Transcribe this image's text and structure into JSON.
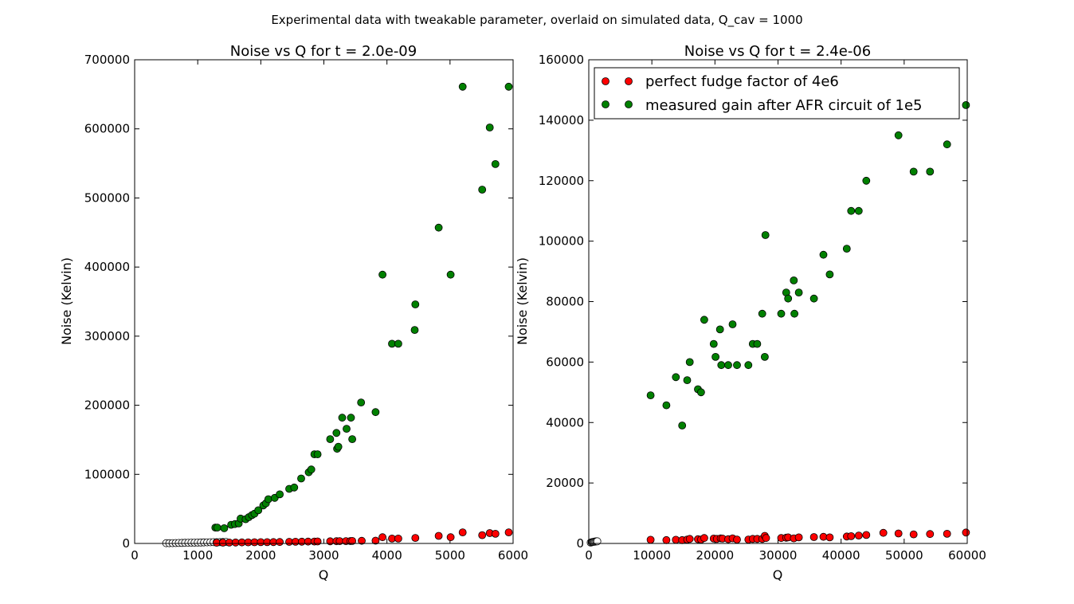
{
  "figure_title": "Experimental data with tweakable parameter, overlaid on simulated data, Q_cav = 1000",
  "colors": {
    "perfect": "#ff0000",
    "measured": "#008000",
    "simulated_edge": "#000000",
    "background": "#ffffff"
  },
  "chart_data": [
    {
      "type": "scatter",
      "title": "Noise vs Q for t = 2.0e-09",
      "xlabel": "Q",
      "ylabel": "Noise (Kelvin)",
      "xlim": [
        0,
        6000
      ],
      "ylim": [
        0,
        700000
      ],
      "xticks": [
        "0",
        "1000",
        "2000",
        "3000",
        "4000",
        "5000",
        "6000"
      ],
      "yticks": [
        "0",
        "100000",
        "200000",
        "300000",
        "400000",
        "500000",
        "600000",
        "700000"
      ],
      "grid": false,
      "legend": null,
      "series": [
        {
          "key": "simulated",
          "marker": "open-circle",
          "points": [
            [
              500,
              300
            ],
            [
              550,
              400
            ],
            [
              600,
              500
            ],
            [
              650,
              600
            ],
            [
              700,
              700
            ],
            [
              750,
              800
            ],
            [
              800,
              900
            ],
            [
              850,
              1000
            ],
            [
              900,
              1100
            ],
            [
              950,
              1200
            ],
            [
              1000,
              1300
            ],
            [
              1050,
              1400
            ],
            [
              1100,
              1500
            ],
            [
              1150,
              1600
            ],
            [
              1200,
              1700
            ],
            [
              1250,
              1800
            ],
            [
              1300,
              1900
            ],
            [
              1350,
              2000
            ],
            [
              1400,
              2100
            ],
            [
              1450,
              2200
            ]
          ]
        },
        {
          "key": "perfect",
          "marker": "filled-circle",
          "points": [
            [
              1300,
              1000
            ],
            [
              1400,
              1200
            ],
            [
              1500,
              1300
            ],
            [
              1600,
              1400
            ],
            [
              1700,
              1500
            ],
            [
              1800,
              1600
            ],
            [
              1900,
              1700
            ],
            [
              2000,
              1800
            ],
            [
              2100,
              1900
            ],
            [
              2200,
              2000
            ],
            [
              2300,
              2100
            ],
            [
              2450,
              2300
            ],
            [
              2550,
              2400
            ],
            [
              2650,
              2500
            ],
            [
              2750,
              2700
            ],
            [
              2850,
              2800
            ],
            [
              2900,
              2900
            ],
            [
              3100,
              3100
            ],
            [
              3200,
              3200
            ],
            [
              3250,
              3300
            ],
            [
              3350,
              3400
            ],
            [
              3420,
              3500
            ],
            [
              3450,
              3600
            ],
            [
              3600,
              3800
            ],
            [
              3820,
              4000
            ],
            [
              3930,
              9000
            ],
            [
              4080,
              7000
            ],
            [
              4180,
              7000
            ],
            [
              4450,
              8000
            ],
            [
              4820,
              11000
            ],
            [
              5010,
              9000
            ],
            [
              5200,
              16000
            ],
            [
              5510,
              12000
            ],
            [
              5630,
              15000
            ],
            [
              5720,
              14000
            ],
            [
              5930,
              16000
            ]
          ]
        },
        {
          "key": "measured",
          "marker": "filled-circle",
          "points": [
            [
              1280,
              23000
            ],
            [
              1310,
              23000
            ],
            [
              1420,
              22000
            ],
            [
              1530,
              27000
            ],
            [
              1590,
              28000
            ],
            [
              1650,
              29000
            ],
            [
              1680,
              36000
            ],
            [
              1760,
              35000
            ],
            [
              1810,
              38000
            ],
            [
              1860,
              41000
            ],
            [
              1900,
              43000
            ],
            [
              1960,
              48000
            ],
            [
              2040,
              55000
            ],
            [
              2080,
              58000
            ],
            [
              2120,
              64000
            ],
            [
              2220,
              66000
            ],
            [
              2300,
              71000
            ],
            [
              2450,
              79000
            ],
            [
              2530,
              81000
            ],
            [
              2640,
              94000
            ],
            [
              2760,
              103000
            ],
            [
              2800,
              107000
            ],
            [
              2850,
              129000
            ],
            [
              2900,
              129000
            ],
            [
              3100,
              151000
            ],
            [
              3200,
              160000
            ],
            [
              3210,
              137000
            ],
            [
              3230,
              140000
            ],
            [
              3290,
              182000
            ],
            [
              3360,
              166000
            ],
            [
              3430,
              182000
            ],
            [
              3450,
              151000
            ],
            [
              3590,
              204000
            ],
            [
              3820,
              190000
            ],
            [
              3930,
              389000
            ],
            [
              4080,
              289000
            ],
            [
              4180,
              289000
            ],
            [
              4440,
              309000
            ],
            [
              4450,
              346000
            ],
            [
              4820,
              457000
            ],
            [
              5010,
              389000
            ],
            [
              5200,
              661000
            ],
            [
              5510,
              512000
            ],
            [
              5630,
              602000
            ],
            [
              5720,
              549000
            ],
            [
              5930,
              661000
            ]
          ]
        }
      ]
    },
    {
      "type": "scatter",
      "title": "Noise vs Q for t = 2.4e-06",
      "xlabel": "Q",
      "ylabel": "Noise (Kelvin)",
      "xlim": [
        0,
        60000
      ],
      "ylim": [
        0,
        160000
      ],
      "xticks": [
        "0",
        "10000",
        "20000",
        "30000",
        "40000",
        "50000",
        "60000"
      ],
      "yticks": [
        "0",
        "20000",
        "40000",
        "60000",
        "80000",
        "100000",
        "120000",
        "140000",
        "160000"
      ],
      "grid": false,
      "legend": {
        "position": "top-left",
        "entries": [
          "perfect fudge factor of 4e6",
          "measured gain after AFR circuit of 1e5"
        ]
      },
      "series": [
        {
          "key": "simulated",
          "marker": "open-circle",
          "points": [
            [
              300,
              300
            ],
            [
              450,
              400
            ],
            [
              600,
              500
            ],
            [
              750,
              500
            ],
            [
              900,
              600
            ],
            [
              1050,
              600
            ],
            [
              1200,
              700
            ],
            [
              1350,
              700
            ]
          ]
        },
        {
          "key": "perfect",
          "name": "perfect fudge factor of 4e6",
          "marker": "filled-circle",
          "points": [
            [
              9800,
              1200
            ],
            [
              12300,
              1100
            ],
            [
              13800,
              1200
            ],
            [
              14800,
              1100
            ],
            [
              15600,
              1300
            ],
            [
              16000,
              1500
            ],
            [
              17300,
              1400
            ],
            [
              17800,
              1300
            ],
            [
              18300,
              1800
            ],
            [
              19800,
              1600
            ],
            [
              20300,
              1500
            ],
            [
              20900,
              1700
            ],
            [
              21200,
              1600
            ],
            [
              22100,
              1400
            ],
            [
              22800,
              1700
            ],
            [
              23500,
              1300
            ],
            [
              25300,
              1300
            ],
            [
              26000,
              1500
            ],
            [
              26700,
              1500
            ],
            [
              27500,
              1500
            ],
            [
              27900,
              2500
            ],
            [
              28100,
              1800
            ],
            [
              30500,
              1800
            ],
            [
              31300,
              1900
            ],
            [
              31600,
              2000
            ],
            [
              32500,
              1700
            ],
            [
              33300,
              2000
            ],
            [
              35700,
              2100
            ],
            [
              37200,
              2200
            ],
            [
              38200,
              2000
            ],
            [
              40900,
              2300
            ],
            [
              41600,
              2400
            ],
            [
              42800,
              2600
            ],
            [
              44000,
              2800
            ],
            [
              46700,
              3500
            ],
            [
              49100,
              3300
            ],
            [
              51500,
              3000
            ],
            [
              54100,
              3100
            ],
            [
              56800,
              3200
            ],
            [
              59800,
              3600
            ]
          ]
        },
        {
          "key": "measured",
          "name": "measured gain after AFR circuit of 1e5",
          "marker": "filled-circle",
          "points": [
            [
              9800,
              49000
            ],
            [
              12300,
              45700
            ],
            [
              13800,
              55000
            ],
            [
              14800,
              39000
            ],
            [
              15600,
              54000
            ],
            [
              16000,
              60000
            ],
            [
              17300,
              51000
            ],
            [
              17800,
              50000
            ],
            [
              18300,
              74000
            ],
            [
              19800,
              66000
            ],
            [
              20100,
              61700
            ],
            [
              20800,
              70800
            ],
            [
              21000,
              59000
            ],
            [
              22100,
              59000
            ],
            [
              22800,
              72500
            ],
            [
              23500,
              59000
            ],
            [
              25300,
              59000
            ],
            [
              26000,
              66000
            ],
            [
              26700,
              66000
            ],
            [
              27500,
              76000
            ],
            [
              27900,
              61700
            ],
            [
              28000,
              102000
            ],
            [
              30500,
              76000
            ],
            [
              31300,
              83000
            ],
            [
              31600,
              81000
            ],
            [
              32500,
              87000
            ],
            [
              32600,
              76000
            ],
            [
              33300,
              83000
            ],
            [
              35700,
              81000
            ],
            [
              37200,
              95500
            ],
            [
              38200,
              89000
            ],
            [
              40900,
              97500
            ],
            [
              41600,
              110000
            ],
            [
              42800,
              110000
            ],
            [
              44000,
              120000
            ],
            [
              49100,
              135000
            ],
            [
              51500,
              123000
            ],
            [
              54100,
              123000
            ],
            [
              56800,
              132000
            ],
            [
              59800,
              145000
            ]
          ]
        }
      ]
    }
  ]
}
